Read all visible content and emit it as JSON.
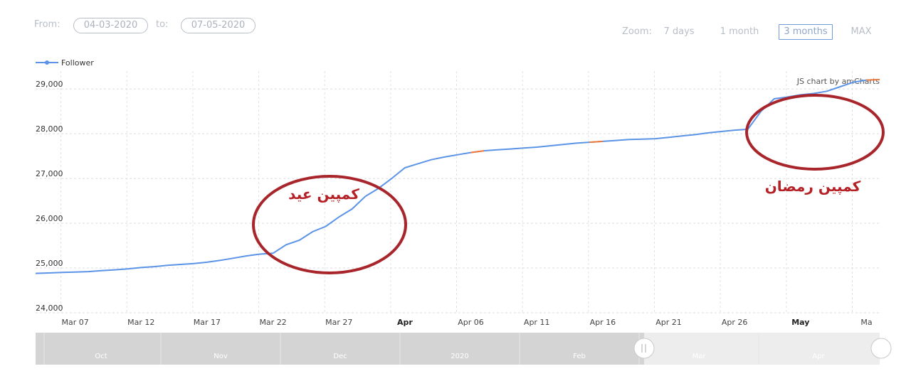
{
  "range": {
    "from_label": "From:",
    "from_value": "04-03-2020",
    "to_label": "to:",
    "to_value": "07-05-2020"
  },
  "zoom": {
    "label": "Zoom:",
    "options": [
      "7 days",
      "1 month",
      "3 months",
      "MAX"
    ],
    "selected": "3 months"
  },
  "legend": {
    "label": "Follower"
  },
  "credit": "JS chart by amCharts",
  "annotations": [
    {
      "text": "کمپین عید",
      "color": "#b42025"
    },
    {
      "text": "کمپین رمضان",
      "color": "#b42025"
    }
  ],
  "colors": {
    "line": "#5b93e6",
    "highlight": "#f07a3a",
    "circle": "#a8262b",
    "scrollbar": "#cfcfcf"
  },
  "scrollbar": {
    "labels": [
      "Oct",
      "Nov",
      "Dec",
      "2020",
      "Feb",
      "Mar",
      "Apr"
    ]
  },
  "chart_data": {
    "type": "line",
    "xlabel": "",
    "ylabel": "",
    "ylim": [
      24000,
      29400
    ],
    "y_ticks": [
      "24,000",
      "25,000",
      "26,000",
      "27,000",
      "28,000",
      "29,000"
    ],
    "x_ticks": [
      "Mar 07",
      "Mar 12",
      "Mar 17",
      "Mar 22",
      "Mar 27",
      "Apr",
      "Apr 06",
      "Apr 11",
      "Apr 16",
      "Apr 21",
      "Apr 26",
      "May",
      "Ma"
    ],
    "x_ticks_bold": [
      "Apr",
      "May"
    ],
    "grid": true,
    "legend_position": "top-left",
    "series": [
      {
        "name": "Follower",
        "points": [
          [
            "2020-03-04",
            24880
          ],
          [
            "2020-03-05",
            24890
          ],
          [
            "2020-03-06",
            24900
          ],
          [
            "2020-03-07",
            24910
          ],
          [
            "2020-03-08",
            24920
          ],
          [
            "2020-03-09",
            24940
          ],
          [
            "2020-03-10",
            24960
          ],
          [
            "2020-03-11",
            24980
          ],
          [
            "2020-03-12",
            25010
          ],
          [
            "2020-03-13",
            25030
          ],
          [
            "2020-03-14",
            25060
          ],
          [
            "2020-03-15",
            25080
          ],
          [
            "2020-03-16",
            25100
          ],
          [
            "2020-03-17",
            25130
          ],
          [
            "2020-03-18",
            25170
          ],
          [
            "2020-03-19",
            25220
          ],
          [
            "2020-03-20",
            25270
          ],
          [
            "2020-03-21",
            25310
          ],
          [
            "2020-03-22",
            25330
          ],
          [
            "2020-03-23",
            25520
          ],
          [
            "2020-03-24",
            25620
          ],
          [
            "2020-03-25",
            25810
          ],
          [
            "2020-03-26",
            25930
          ],
          [
            "2020-03-27",
            26140
          ],
          [
            "2020-03-28",
            26320
          ],
          [
            "2020-03-29",
            26600
          ],
          [
            "2020-03-30",
            26780
          ],
          [
            "2020-03-31",
            27000
          ],
          [
            "2020-04-01",
            27240
          ],
          [
            "2020-04-02",
            27330
          ],
          [
            "2020-04-03",
            27420
          ],
          [
            "2020-04-04",
            27480
          ],
          [
            "2020-04-05",
            27530
          ],
          [
            "2020-04-06",
            27580
          ],
          [
            "2020-04-07",
            27620
          ],
          [
            "2020-04-08",
            27640
          ],
          [
            "2020-04-09",
            27660
          ],
          [
            "2020-04-10",
            27680
          ],
          [
            "2020-04-11",
            27700
          ],
          [
            "2020-04-12",
            27730
          ],
          [
            "2020-04-13",
            27760
          ],
          [
            "2020-04-14",
            27790
          ],
          [
            "2020-04-15",
            27810
          ],
          [
            "2020-04-16",
            27830
          ],
          [
            "2020-04-17",
            27850
          ],
          [
            "2020-04-18",
            27870
          ],
          [
            "2020-04-19",
            27880
          ],
          [
            "2020-04-20",
            27890
          ],
          [
            "2020-04-21",
            27920
          ],
          [
            "2020-04-22",
            27950
          ],
          [
            "2020-04-23",
            27980
          ],
          [
            "2020-04-24",
            28020
          ],
          [
            "2020-04-25",
            28050
          ],
          [
            "2020-04-26",
            28080
          ],
          [
            "2020-04-27",
            28100
          ],
          [
            "2020-04-28",
            28500
          ],
          [
            "2020-04-29",
            28780
          ],
          [
            "2020-04-30",
            28820
          ],
          [
            "2020-05-01",
            28870
          ],
          [
            "2020-05-02",
            28900
          ],
          [
            "2020-05-03",
            28950
          ],
          [
            "2020-05-04",
            29050
          ],
          [
            "2020-05-05",
            29150
          ],
          [
            "2020-05-06",
            29200
          ],
          [
            "2020-05-07",
            29210
          ]
        ]
      }
    ],
    "highlighted_segments": [
      {
        "from": "2020-04-06",
        "to": "2020-04-07",
        "color": "#f07a3a"
      },
      {
        "from": "2020-04-15",
        "to": "2020-04-16",
        "color": "#f07a3a"
      },
      {
        "from": "2020-05-06",
        "to": "2020-05-07",
        "color": "#f07a3a"
      }
    ]
  }
}
